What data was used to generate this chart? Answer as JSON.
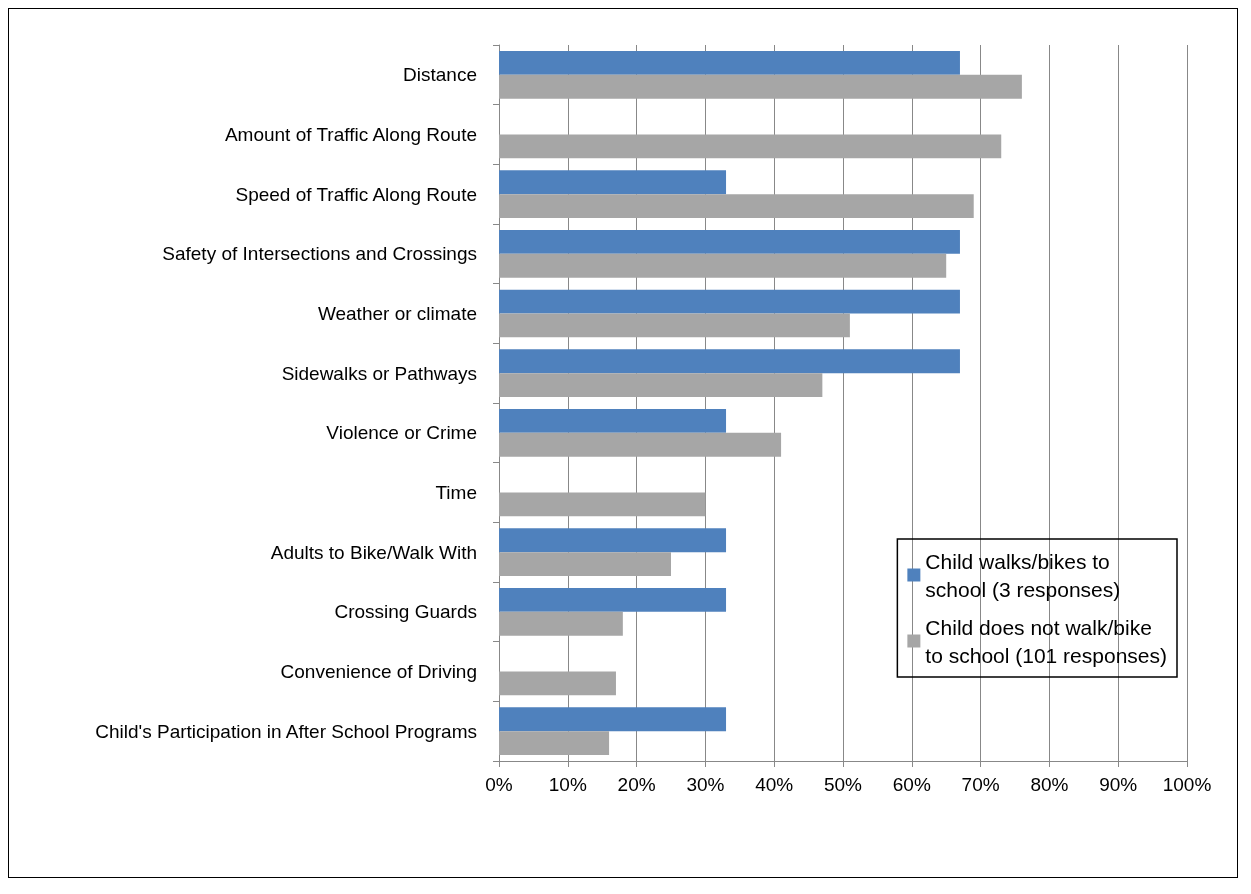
{
  "chart_data": {
    "type": "bar",
    "orientation": "horizontal",
    "categories": [
      "Distance",
      "Amount of Traffic Along Route",
      "Speed of Traffic Along Route",
      "Safety of Intersections and Crossings",
      "Weather or climate",
      "Sidewalks or Pathways",
      "Violence or Crime",
      "Time",
      "Adults to Bike/Walk With",
      "Crossing Guards",
      "Convenience of Driving",
      "Child's Participation in After School Programs"
    ],
    "series": [
      {
        "name": "Child walks/bikes to school (3 responses)",
        "color": "#4f81bd",
        "values": [
          67,
          0,
          33,
          67,
          67,
          67,
          33,
          0,
          33,
          33,
          0,
          33
        ]
      },
      {
        "name": "Child does not walk/bike to school (101 responses)",
        "color": "#a6a6a6",
        "values": [
          76,
          73,
          69,
          65,
          51,
          47,
          41,
          30,
          25,
          18,
          17,
          16
        ]
      }
    ],
    "xlim": [
      0,
      100
    ],
    "xticks": [
      {
        "value": 0,
        "label": "0%"
      },
      {
        "value": 10,
        "label": "10%"
      },
      {
        "value": 20,
        "label": "20%"
      },
      {
        "value": 30,
        "label": "30%"
      },
      {
        "value": 40,
        "label": "40%"
      },
      {
        "value": 50,
        "label": "50%"
      },
      {
        "value": 60,
        "label": "60%"
      },
      {
        "value": 70,
        "label": "70%"
      },
      {
        "value": 80,
        "label": "80%"
      },
      {
        "value": 90,
        "label": "90%"
      },
      {
        "value": 100,
        "label": "100%"
      }
    ],
    "grid": "x",
    "legend": "bottom right"
  }
}
